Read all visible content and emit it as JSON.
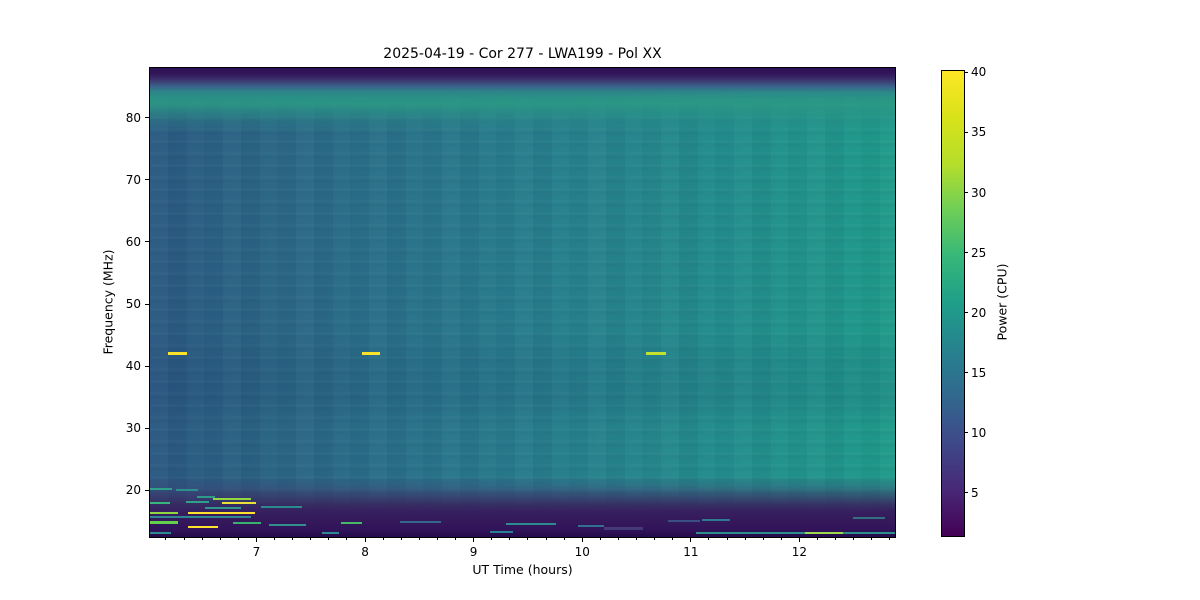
{
  "chart_data": {
    "type": "heatmap",
    "title": "2025-04-19 - Cor 277 - LWA199 - Pol XX",
    "xlabel": "UT Time (hours)",
    "ylabel": "Frequency (MHz)",
    "colorbar_label": "Power (CPU)",
    "colormap": "viridis",
    "x_range_hours": [
      6.02,
      12.88
    ],
    "y_range_mhz": [
      12.5,
      88
    ],
    "x_ticks": [
      7,
      8,
      9,
      10,
      11,
      12
    ],
    "x_minor_ticks_every_minutes": 10,
    "y_ticks": [
      20,
      30,
      40,
      50,
      60,
      70,
      80
    ],
    "grid": false,
    "legend": "none",
    "colorbar": {
      "ticks": [
        5,
        10,
        15,
        20,
        25,
        30,
        35,
        40
      ],
      "vmin": 1.5,
      "vmax": 40.2,
      "position": "right"
    },
    "background_bands": [
      {
        "freq_range_mhz": [
          86,
          88
        ],
        "approx_power": 3,
        "note": "dark purple band at top edge"
      },
      {
        "freq_range_mhz": [
          79,
          85
        ],
        "approx_power": 23,
        "note": "bright green horizontal band"
      },
      {
        "freq_range_mhz": [
          20,
          78
        ],
        "approx_power": "15 to 22",
        "note": "smooth teal body, power increases from ~15 at 06:00 to ~22 at 12:50"
      },
      {
        "freq_range_mhz": [
          15,
          20
        ],
        "approx_power": "5 to 12",
        "note": "transition zone with many narrowband RFI dashes, strongest before 07:30"
      },
      {
        "freq_range_mhz": [
          12.5,
          15
        ],
        "approx_power": 3,
        "note": "dark purple band at bottom edge with sparse RFI dashes"
      }
    ],
    "features": [
      {
        "t0": 6.19,
        "t1": 6.36,
        "f": 42.1,
        "h": 0.5,
        "color": "#ffe32b"
      },
      {
        "t0": 7.97,
        "t1": 8.14,
        "f": 42.1,
        "h": 0.5,
        "color": "#ffe32b"
      },
      {
        "t0": 10.59,
        "t1": 10.77,
        "f": 42.1,
        "h": 0.5,
        "color": "#c6e02e"
      },
      {
        "t0": 6.02,
        "t1": 6.22,
        "f": 20.2,
        "h": 0.35,
        "color": "#2fa08a"
      },
      {
        "t0": 6.26,
        "t1": 6.46,
        "f": 20.1,
        "h": 0.3,
        "color": "#2f8f8d"
      },
      {
        "t0": 6.45,
        "t1": 6.62,
        "f": 19.0,
        "h": 0.3,
        "color": "#2d9a8a"
      },
      {
        "t0": 6.6,
        "t1": 6.95,
        "f": 18.6,
        "h": 0.3,
        "color": "#8fd741"
      },
      {
        "t0": 6.02,
        "t1": 6.2,
        "f": 18.0,
        "h": 0.4,
        "color": "#35b779"
      },
      {
        "t0": 6.35,
        "t1": 6.56,
        "f": 18.1,
        "h": 0.35,
        "color": "#2fa08a"
      },
      {
        "t0": 6.68,
        "t1": 7.0,
        "f": 18.0,
        "h": 0.4,
        "color": "#e8e337"
      },
      {
        "t0": 6.53,
        "t1": 6.86,
        "f": 17.2,
        "h": 0.3,
        "color": "#2e968c"
      },
      {
        "t0": 7.04,
        "t1": 7.42,
        "f": 17.3,
        "h": 0.28,
        "color": "#2a8a8e"
      },
      {
        "t0": 6.02,
        "t1": 6.28,
        "f": 16.4,
        "h": 0.4,
        "color": "#8fd741"
      },
      {
        "t0": 6.37,
        "t1": 6.99,
        "f": 16.4,
        "h": 0.4,
        "color": "#ffe22b"
      },
      {
        "t0": 6.02,
        "t1": 6.95,
        "f": 15.7,
        "h": 0.28,
        "color": "#2d8690"
      },
      {
        "t0": 6.02,
        "t1": 6.28,
        "f": 14.8,
        "h": 0.4,
        "color": "#63d14e"
      },
      {
        "t0": 6.37,
        "t1": 6.65,
        "f": 14.1,
        "h": 0.4,
        "color": "#ffe22b"
      },
      {
        "t0": 6.78,
        "t1": 7.04,
        "f": 14.8,
        "h": 0.35,
        "color": "#3ab06e"
      },
      {
        "t0": 7.12,
        "t1": 7.46,
        "f": 14.5,
        "h": 0.3,
        "color": "#2f8f8d"
      },
      {
        "t0": 7.78,
        "t1": 7.97,
        "f": 14.8,
        "h": 0.35,
        "color": "#45bb6a"
      },
      {
        "t0": 8.32,
        "t1": 8.7,
        "f": 14.9,
        "h": 0.3,
        "color": "#36648f"
      },
      {
        "t0": 9.3,
        "t1": 9.76,
        "f": 14.6,
        "h": 0.3,
        "color": "#2d8a8e"
      },
      {
        "t0": 9.96,
        "t1": 10.2,
        "f": 14.3,
        "h": 0.28,
        "color": "#31708f"
      },
      {
        "t0": 10.2,
        "t1": 10.56,
        "f": 13.8,
        "h": 0.5,
        "color": "#453a78"
      },
      {
        "t0": 10.79,
        "t1": 11.08,
        "f": 15.1,
        "h": 0.28,
        "color": "#3a4f86"
      },
      {
        "t0": 11.1,
        "t1": 11.36,
        "f": 15.2,
        "h": 0.28,
        "color": "#2d7a90"
      },
      {
        "t0": 12.49,
        "t1": 12.79,
        "f": 15.6,
        "h": 0.28,
        "color": "#33707f"
      },
      {
        "t0": 6.02,
        "t1": 6.21,
        "f": 13.2,
        "h": 0.3,
        "color": "#2d8a8e"
      },
      {
        "t0": 7.6,
        "t1": 7.76,
        "f": 13.2,
        "h": 0.28,
        "color": "#2d8a8e"
      },
      {
        "t0": 9.15,
        "t1": 9.36,
        "f": 13.25,
        "h": 0.28,
        "color": "#2b7f92"
      },
      {
        "t0": 11.05,
        "t1": 12.88,
        "f": 13.1,
        "h": 0.3,
        "color": "#2d8f8c"
      },
      {
        "t0": 12.05,
        "t1": 12.4,
        "f": 13.15,
        "h": 0.35,
        "color": "#9bd84b"
      }
    ]
  }
}
